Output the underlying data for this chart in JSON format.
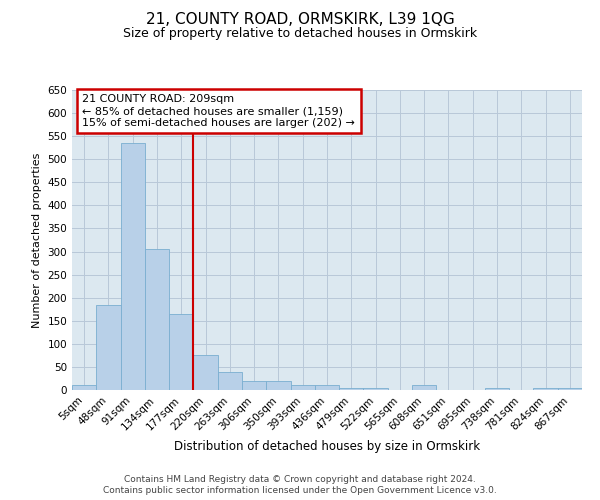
{
  "title": "21, COUNTY ROAD, ORMSKIRK, L39 1QG",
  "subtitle": "Size of property relative to detached houses in Ormskirk",
  "xlabel": "Distribution of detached houses by size in Ormskirk",
  "ylabel": "Number of detached properties",
  "categories": [
    "5sqm",
    "48sqm",
    "91sqm",
    "134sqm",
    "177sqm",
    "220sqm",
    "263sqm",
    "306sqm",
    "350sqm",
    "393sqm",
    "436sqm",
    "479sqm",
    "522sqm",
    "565sqm",
    "608sqm",
    "651sqm",
    "695sqm",
    "738sqm",
    "781sqm",
    "824sqm",
    "867sqm"
  ],
  "values": [
    10,
    185,
    535,
    305,
    165,
    75,
    40,
    20,
    20,
    10,
    10,
    5,
    5,
    0,
    10,
    0,
    0,
    5,
    0,
    5,
    5
  ],
  "bar_color": "#b8d0e8",
  "bar_edge_color": "#7aaed0",
  "vline_index": 5,
  "vline_color": "#cc0000",
  "annotation_line1": "21 COUNTY ROAD: 209sqm",
  "annotation_line2": "← 85% of detached houses are smaller (1,159)",
  "annotation_line3": "15% of semi-detached houses are larger (202) →",
  "annotation_box_facecolor": "#ffffff",
  "annotation_box_edgecolor": "#cc0000",
  "ylim": [
    0,
    650
  ],
  "yticks": [
    0,
    50,
    100,
    150,
    200,
    250,
    300,
    350,
    400,
    450,
    500,
    550,
    600,
    650
  ],
  "plot_bg_color": "#dce8f0",
  "fig_bg_color": "#ffffff",
  "footer1": "Contains HM Land Registry data © Crown copyright and database right 2024.",
  "footer2": "Contains public sector information licensed under the Open Government Licence v3.0.",
  "title_fontsize": 11,
  "subtitle_fontsize": 9,
  "tick_fontsize": 7.5,
  "ylabel_fontsize": 8,
  "xlabel_fontsize": 8.5,
  "footer_fontsize": 6.5
}
